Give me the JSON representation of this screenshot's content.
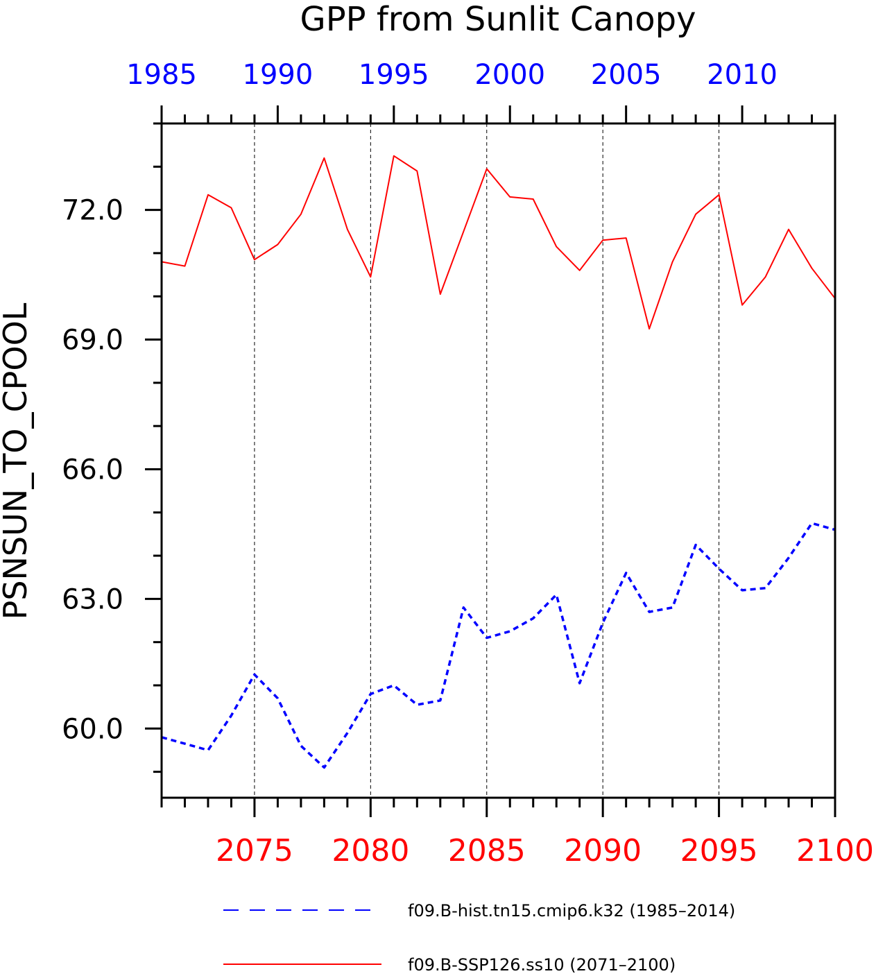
{
  "chart_data": {
    "type": "line",
    "title": "GPP from Sunlit Canopy",
    "ylabel": "PSNSUN_TO_CPOOL",
    "ylim": [
      58.4,
      74.0
    ],
    "y_ticks": [
      60.0,
      63.0,
      66.0,
      69.0,
      72.0
    ],
    "y_tick_labels": [
      "60.0",
      "63.0",
      "66.0",
      "69.0",
      "72.0"
    ],
    "y_minor_step": 1.0,
    "grid": "vertical dashed lines at bottom-axis major ticks",
    "bottom_axis": {
      "xlim": [
        2071,
        2100
      ],
      "ticks": [
        2075,
        2080,
        2085,
        2090,
        2095,
        2100
      ],
      "tick_labels": [
        "2075",
        "2080",
        "2085",
        "2090",
        "2095",
        "2100"
      ],
      "color": "#ff0000"
    },
    "top_axis": {
      "xlim": [
        1985,
        2014
      ],
      "ticks": [
        1985,
        1990,
        1995,
        2000,
        2005,
        2010
      ],
      "tick_labels": [
        "1985",
        "1990",
        "1995",
        "2000",
        "2005",
        "2010"
      ],
      "color": "#0000ff"
    },
    "legend_position": "bottom",
    "series": [
      {
        "name": "f09.B-hist.tn15.cmip6.k32 (1985–2014)",
        "axis": "top",
        "color": "#0000ff",
        "style": "dashed",
        "x": [
          1985,
          1986,
          1987,
          1988,
          1989,
          1990,
          1991,
          1992,
          1993,
          1994,
          1995,
          1996,
          1997,
          1998,
          1999,
          2000,
          2001,
          2002,
          2003,
          2004,
          2005,
          2006,
          2007,
          2008,
          2009,
          2010,
          2011,
          2012,
          2013,
          2014
        ],
        "values": [
          59.8,
          59.65,
          59.5,
          60.3,
          61.25,
          60.7,
          59.6,
          59.1,
          59.9,
          60.8,
          61.0,
          60.55,
          60.65,
          62.8,
          62.1,
          62.25,
          62.55,
          63.1,
          61.05,
          62.45,
          63.6,
          62.7,
          62.8,
          64.25,
          63.7,
          63.2,
          63.25,
          63.95,
          64.75,
          64.6
        ]
      },
      {
        "name": "f09.B-SSP126.ss10 (2071–2100)",
        "axis": "bottom",
        "color": "#ff0000",
        "style": "solid",
        "x": [
          2071,
          2072,
          2073,
          2074,
          2075,
          2076,
          2077,
          2078,
          2079,
          2080,
          2081,
          2082,
          2083,
          2084,
          2085,
          2086,
          2087,
          2088,
          2089,
          2090,
          2091,
          2092,
          2093,
          2094,
          2095,
          2096,
          2097,
          2098,
          2099,
          2100
        ],
        "values": [
          70.8,
          70.7,
          72.35,
          72.05,
          70.85,
          71.2,
          71.9,
          73.2,
          71.55,
          70.45,
          73.25,
          72.9,
          70.05,
          71.5,
          72.95,
          72.3,
          72.25,
          71.15,
          70.6,
          71.3,
          71.35,
          69.25,
          70.8,
          71.9,
          72.35,
          69.8,
          70.45,
          71.55,
          70.65,
          69.95
        ]
      }
    ]
  }
}
